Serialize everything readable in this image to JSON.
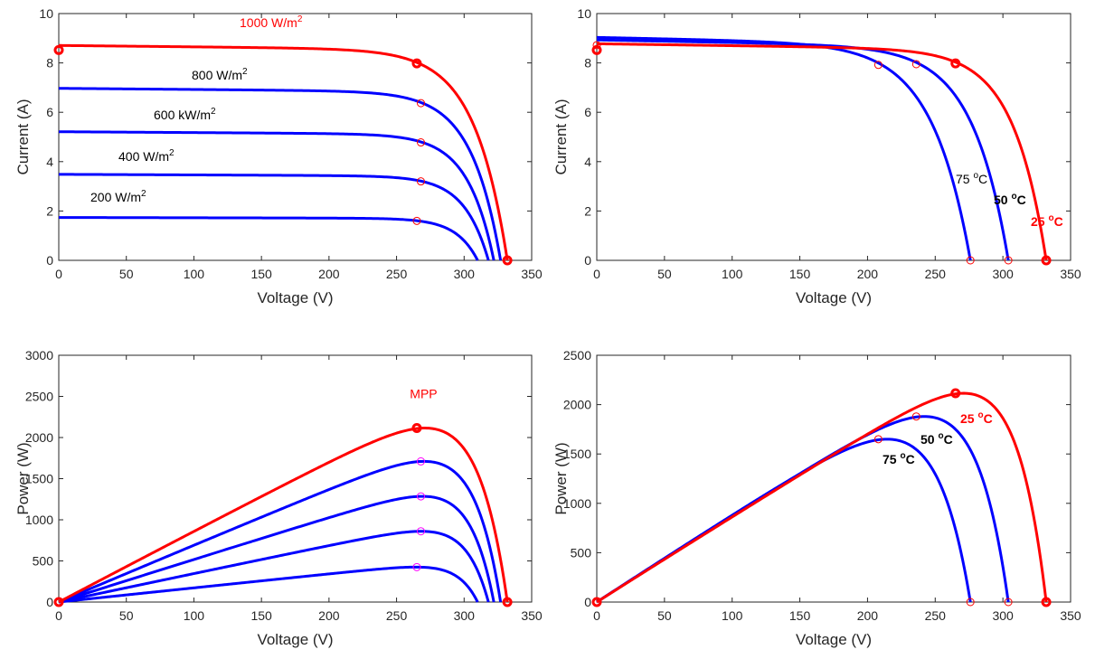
{
  "chart_data": [
    {
      "id": "iv_irradiance",
      "type": "line",
      "xlabel": "Voltage (V)",
      "ylabel": "Current (A)",
      "xlim": [
        0,
        350
      ],
      "ylim": [
        0,
        10
      ],
      "xticks": [
        "0",
        "50",
        "100",
        "150",
        "200",
        "250",
        "300",
        "350"
      ],
      "yticks": [
        "0",
        "2",
        "4",
        "6",
        "8",
        "10"
      ],
      "grid": false,
      "series": [
        {
          "name": "1000 W/m2",
          "label_main": "1000 W/m",
          "label_sup": "2",
          "color": "#ff0000",
          "kind": "iv",
          "isc": 8.52,
          "voc": 332,
          "vmp": 265,
          "imp": 7.98,
          "tail": 0.022,
          "mark_start": true,
          "mark_end": true,
          "mpp_style": "bold"
        },
        {
          "name": "800 W/m2",
          "label_main": "800 W/m",
          "label_sup": "2",
          "color": "#0000ff",
          "kind": "iv",
          "isc": 6.82,
          "voc": 327,
          "vmp": 268,
          "imp": 6.37,
          "tail": 0.022
        },
        {
          "name": "600 kW/m2",
          "label_main": "600 kW/m",
          "label_sup": "2",
          "color": "#0000ff",
          "kind": "iv",
          "isc": 5.1,
          "voc": 322,
          "vmp": 268,
          "imp": 4.78,
          "tail": 0.022
        },
        {
          "name": "400 W/m2",
          "label_main": "400 W/m",
          "label_sup": "2",
          "color": "#0000ff",
          "kind": "iv",
          "isc": 3.41,
          "voc": 318,
          "vmp": 268,
          "imp": 3.2,
          "tail": 0.022
        },
        {
          "name": "200 W/m2",
          "label_main": "200 W/m",
          "label_sup": "2",
          "color": "#0000ff",
          "kind": "iv",
          "isc": 1.7,
          "voc": 310,
          "vmp": 265,
          "imp": 1.6,
          "tail": 0.022
        }
      ]
    },
    {
      "id": "iv_temperature",
      "type": "line",
      "xlabel": "Voltage (V)",
      "ylabel": "Current (A)",
      "xlim": [
        0,
        350
      ],
      "ylim": [
        0,
        10
      ],
      "xticks": [
        "0",
        "50",
        "100",
        "150",
        "200",
        "250",
        "300",
        "350"
      ],
      "yticks": [
        "0",
        "2",
        "4",
        "6",
        "8",
        "10"
      ],
      "grid": false,
      "series": [
        {
          "name": "25 °C",
          "label_main": "25 ",
          "label_sup": "o",
          "label_end": "C",
          "color": "#ff0000",
          "kind": "iv",
          "isc": 8.52,
          "voc": 332,
          "vmp": 265,
          "imp": 7.98,
          "tail": 0.03,
          "mark_start": true,
          "mark_end": true,
          "mpp_style": "bold"
        },
        {
          "name": "50 °C",
          "label_main": "50 ",
          "label_sup": "o",
          "label_end": "C",
          "color": "#0000ff",
          "kind": "iv",
          "isc": 8.62,
          "voc": 304,
          "vmp": 236,
          "imp": 7.95,
          "tail": 0.036,
          "mark_end": true
        },
        {
          "name": "75 °C",
          "label_main": "75 ",
          "label_sup": "o",
          "label_end": "C",
          "color": "#0000ff",
          "kind": "iv",
          "isc": 8.72,
          "voc": 276,
          "vmp": 208,
          "imp": 7.92,
          "tail": 0.036,
          "mark_start": true,
          "mark_end": true
        }
      ]
    },
    {
      "id": "pv_irradiance",
      "type": "line",
      "xlabel": "Voltage (V)",
      "ylabel": "Power (W)",
      "xlim": [
        0,
        350
      ],
      "ylim": [
        0,
        3000
      ],
      "xticks": [
        "0",
        "50",
        "100",
        "150",
        "200",
        "250",
        "300",
        "350"
      ],
      "yticks": [
        "0",
        "500",
        "1000",
        "1500",
        "2000",
        "2500",
        "3000"
      ],
      "grid": false,
      "annotations": [
        {
          "text": "MPP",
          "x": 270,
          "y": 2480,
          "color": "#ff0000"
        }
      ],
      "series": [
        {
          "name": "1000 W/m2",
          "color": "#ff0000",
          "kind": "pv",
          "isc": 8.52,
          "voc": 332,
          "vmp": 265,
          "imp": 7.98,
          "tail": 0.022,
          "pmax": 2115,
          "mark_start": true,
          "mark_end": true,
          "mpp_style": "bold"
        },
        {
          "name": "800 W/m2",
          "color": "#0000ff",
          "kind": "pv",
          "isc": 6.82,
          "voc": 327,
          "vmp": 268,
          "imp": 6.37,
          "tail": 0.022,
          "pmax": 1710
        },
        {
          "name": "600 kW/m2",
          "color": "#0000ff",
          "kind": "pv",
          "isc": 5.1,
          "voc": 322,
          "vmp": 268,
          "imp": 4.78,
          "tail": 0.022,
          "pmax": 1285
        },
        {
          "name": "400 W/m2",
          "color": "#0000ff",
          "kind": "pv",
          "isc": 3.41,
          "voc": 318,
          "vmp": 268,
          "imp": 3.2,
          "tail": 0.022,
          "pmax": 860
        },
        {
          "name": "200 W/m2",
          "color": "#0000ff",
          "kind": "pv",
          "isc": 1.7,
          "voc": 310,
          "vmp": 265,
          "imp": 1.6,
          "tail": 0.022,
          "pmax": 425
        }
      ]
    },
    {
      "id": "pv_temperature",
      "type": "line",
      "xlabel": "Voltage (V)",
      "ylabel": "Power (W)",
      "xlim": [
        0,
        350
      ],
      "ylim": [
        0,
        2500
      ],
      "xticks": [
        "0",
        "50",
        "100",
        "150",
        "200",
        "250",
        "300",
        "350"
      ],
      "yticks": [
        "0",
        "500",
        "1000",
        "1500",
        "2000",
        "2500"
      ],
      "grid": false,
      "series": [
        {
          "name": "25 °C",
          "label_main": "25 ",
          "label_sup": "o",
          "label_end": "C",
          "color": "#ff0000",
          "kind": "pv",
          "isc": 8.52,
          "voc": 332,
          "vmp": 265,
          "imp": 7.98,
          "tail": 0.03,
          "pmax": 2115,
          "mark_start": true,
          "mark_end": true,
          "mpp_style": "bold"
        },
        {
          "name": "50 °C",
          "label_main": "50 ",
          "label_sup": "o",
          "label_end": "C",
          "color": "#0000ff",
          "kind": "pv",
          "isc": 8.62,
          "voc": 304,
          "vmp": 236,
          "imp": 7.95,
          "tail": 0.036,
          "pmax": 1880,
          "mark_end": true
        },
        {
          "name": "75 °C",
          "label_main": "75 ",
          "label_sup": "o",
          "label_end": "C",
          "color": "#0000ff",
          "kind": "pv",
          "isc": 8.72,
          "voc": 276,
          "vmp": 208,
          "imp": 7.92,
          "tail": 0.036,
          "pmax": 1650,
          "mark_end": true
        }
      ]
    }
  ]
}
